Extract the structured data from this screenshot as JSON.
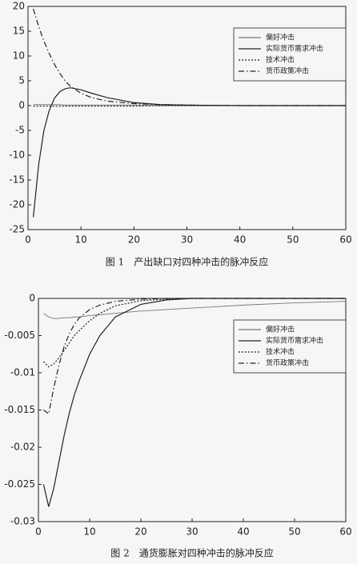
{
  "chart_data": [
    {
      "type": "line",
      "title": "图 1　产出缺口对四种冲击的脉冲反应",
      "x": [
        1,
        2,
        3,
        4,
        5,
        6,
        7,
        8,
        10,
        12,
        15,
        20,
        25,
        30,
        40,
        50,
        60
      ],
      "series": [
        {
          "name": "偏好冲击",
          "color": "#777777",
          "dash": "solid",
          "values": [
            0.2,
            0.2,
            0.2,
            0.2,
            0.2,
            0.2,
            0.1,
            0.1,
            0.1,
            0.1,
            0.1,
            0.1,
            0,
            0,
            0,
            0,
            0
          ]
        },
        {
          "name": "实际货币需求冲击",
          "color": "#222222",
          "dash": "solid",
          "values": [
            -22.5,
            -12,
            -5,
            -1,
            1.5,
            2.8,
            3.4,
            3.6,
            3.2,
            2.5,
            1.6,
            0.6,
            0.2,
            0.1,
            0,
            0,
            0
          ]
        },
        {
          "name": "技术冲击",
          "color": "#222222",
          "dash": "dotted",
          "values": [
            -0.1,
            -0.1,
            -0.1,
            -0.1,
            -0.1,
            -0.1,
            -0.1,
            -0.1,
            -0.1,
            -0.1,
            -0.1,
            -0.1,
            0,
            0,
            0,
            0,
            0
          ]
        },
        {
          "name": "货币政策冲击",
          "color": "#222222",
          "dash": "dashdot",
          "values": [
            19.5,
            16,
            13,
            10.5,
            8.3,
            6.5,
            5,
            3.9,
            2.5,
            1.6,
            0.9,
            0.4,
            0.2,
            0.1,
            0,
            0,
            0
          ]
        }
      ],
      "xlim": [
        0,
        60
      ],
      "xticks": [
        0,
        10,
        20,
        30,
        40,
        50,
        60
      ],
      "ylim": [
        -25,
        20
      ],
      "yticks": [
        -25,
        -20,
        -15,
        -10,
        -5,
        0,
        5,
        10,
        15,
        20
      ],
      "grid": false,
      "legend": "upper right"
    },
    {
      "type": "line",
      "title": "图 2　通货膨胀对四种冲击的脉冲反应",
      "x": [
        1,
        2,
        3,
        4,
        5,
        6,
        7,
        8,
        10,
        12,
        15,
        20,
        25,
        30,
        40,
        50,
        60
      ],
      "series": [
        {
          "name": "偏好冲击",
          "color": "#777777",
          "dash": "solid",
          "values": [
            -0.002,
            -0.0025,
            -0.0027,
            -0.0027,
            -0.0026,
            -0.0026,
            -0.0025,
            -0.0025,
            -0.0023,
            -0.0022,
            -0.002,
            -0.0017,
            -0.0015,
            -0.0013,
            -0.0009,
            -0.0006,
            -0.0004
          ]
        },
        {
          "name": "实际货币需求冲击",
          "color": "#222222",
          "dash": "solid",
          "values": [
            -0.025,
            -0.028,
            -0.0255,
            -0.022,
            -0.0185,
            -0.0155,
            -0.013,
            -0.011,
            -0.0075,
            -0.005,
            -0.0025,
            -0.0008,
            -0.0002,
            0,
            0,
            0,
            0
          ]
        },
        {
          "name": "技术冲击",
          "color": "#222222",
          "dash": "dotted",
          "values": [
            -0.0085,
            -0.0092,
            -0.0088,
            -0.008,
            -0.007,
            -0.006,
            -0.005,
            -0.0043,
            -0.003,
            -0.002,
            -0.001,
            -0.0003,
            -0.0001,
            0,
            0,
            0,
            0
          ]
        },
        {
          "name": "货币政策冲击",
          "color": "#222222",
          "dash": "dashdot",
          "values": [
            -0.015,
            -0.0155,
            -0.012,
            -0.009,
            -0.0065,
            -0.0048,
            -0.0035,
            -0.0026,
            -0.0015,
            -0.0009,
            -0.0004,
            -0.0001,
            0,
            0,
            0,
            0,
            0
          ]
        }
      ],
      "xlim": [
        0,
        60
      ],
      "xticks": [
        0,
        10,
        20,
        30,
        40,
        50,
        60
      ],
      "ylim": [
        -0.03,
        0
      ],
      "yticks": [
        -0.03,
        -0.025,
        -0.02,
        -0.015,
        -0.01,
        -0.005,
        0
      ],
      "grid": false,
      "legend": "upper right"
    }
  ]
}
